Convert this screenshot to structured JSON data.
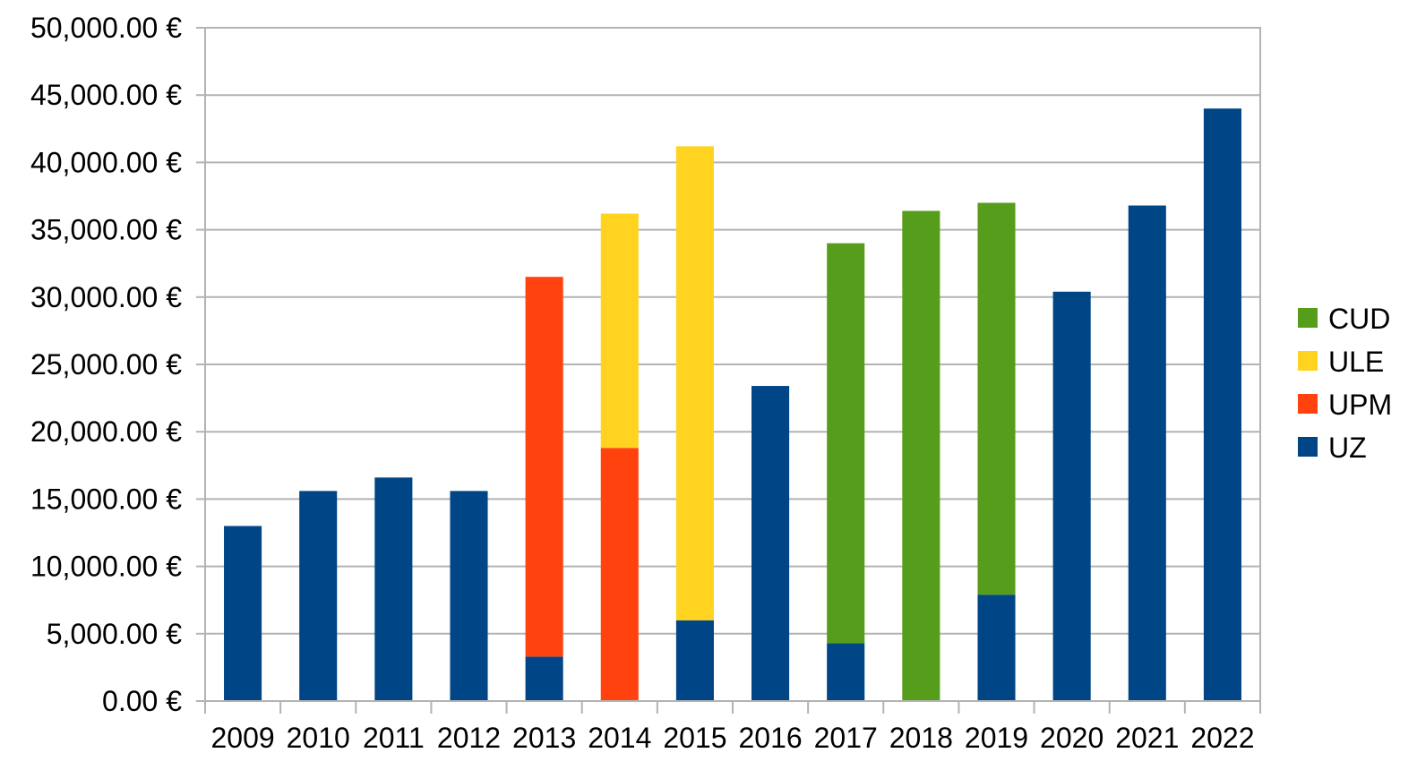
{
  "chart_data": {
    "type": "bar",
    "stacked": true,
    "categories": [
      "2009",
      "2010",
      "2011",
      "2012",
      "2013",
      "2014",
      "2015",
      "2016",
      "2017",
      "2018",
      "2019",
      "2020",
      "2021",
      "2022"
    ],
    "series": [
      {
        "name": "UZ",
        "color": "#004586",
        "values": [
          13000,
          15600,
          16600,
          15600,
          3300,
          0,
          6000,
          23400,
          4300,
          0,
          7900,
          30400,
          36800,
          44000
        ]
      },
      {
        "name": "UPM",
        "color": "#ff420e",
        "values": [
          0,
          0,
          0,
          0,
          28200,
          18800,
          0,
          0,
          0,
          0,
          0,
          0,
          0,
          0
        ]
      },
      {
        "name": "ULE",
        "color": "#ffd320",
        "values": [
          0,
          0,
          0,
          0,
          0,
          17400,
          35200,
          0,
          0,
          0,
          0,
          0,
          0,
          0
        ]
      },
      {
        "name": "CUD",
        "color": "#579d1c",
        "values": [
          0,
          0,
          0,
          0,
          0,
          0,
          0,
          0,
          29700,
          36400,
          29100,
          0,
          0,
          0
        ]
      }
    ],
    "legend_order": [
      "CUD",
      "ULE",
      "UPM",
      "UZ"
    ],
    "y_tick_labels": [
      "0.00 €",
      "5,000.00 €",
      "10,000.00 €",
      "15,000.00 €",
      "20,000.00 €",
      "25,000.00 €",
      "30,000.00 €",
      "35,000.00 €",
      "40,000.00 €",
      "45,000.00 €",
      "50,000.00 €"
    ],
    "ylim": [
      0,
      50000
    ],
    "y_step": 5000,
    "grid": true,
    "legend_position": "right",
    "title": "",
    "xlabel": "",
    "ylabel": ""
  }
}
